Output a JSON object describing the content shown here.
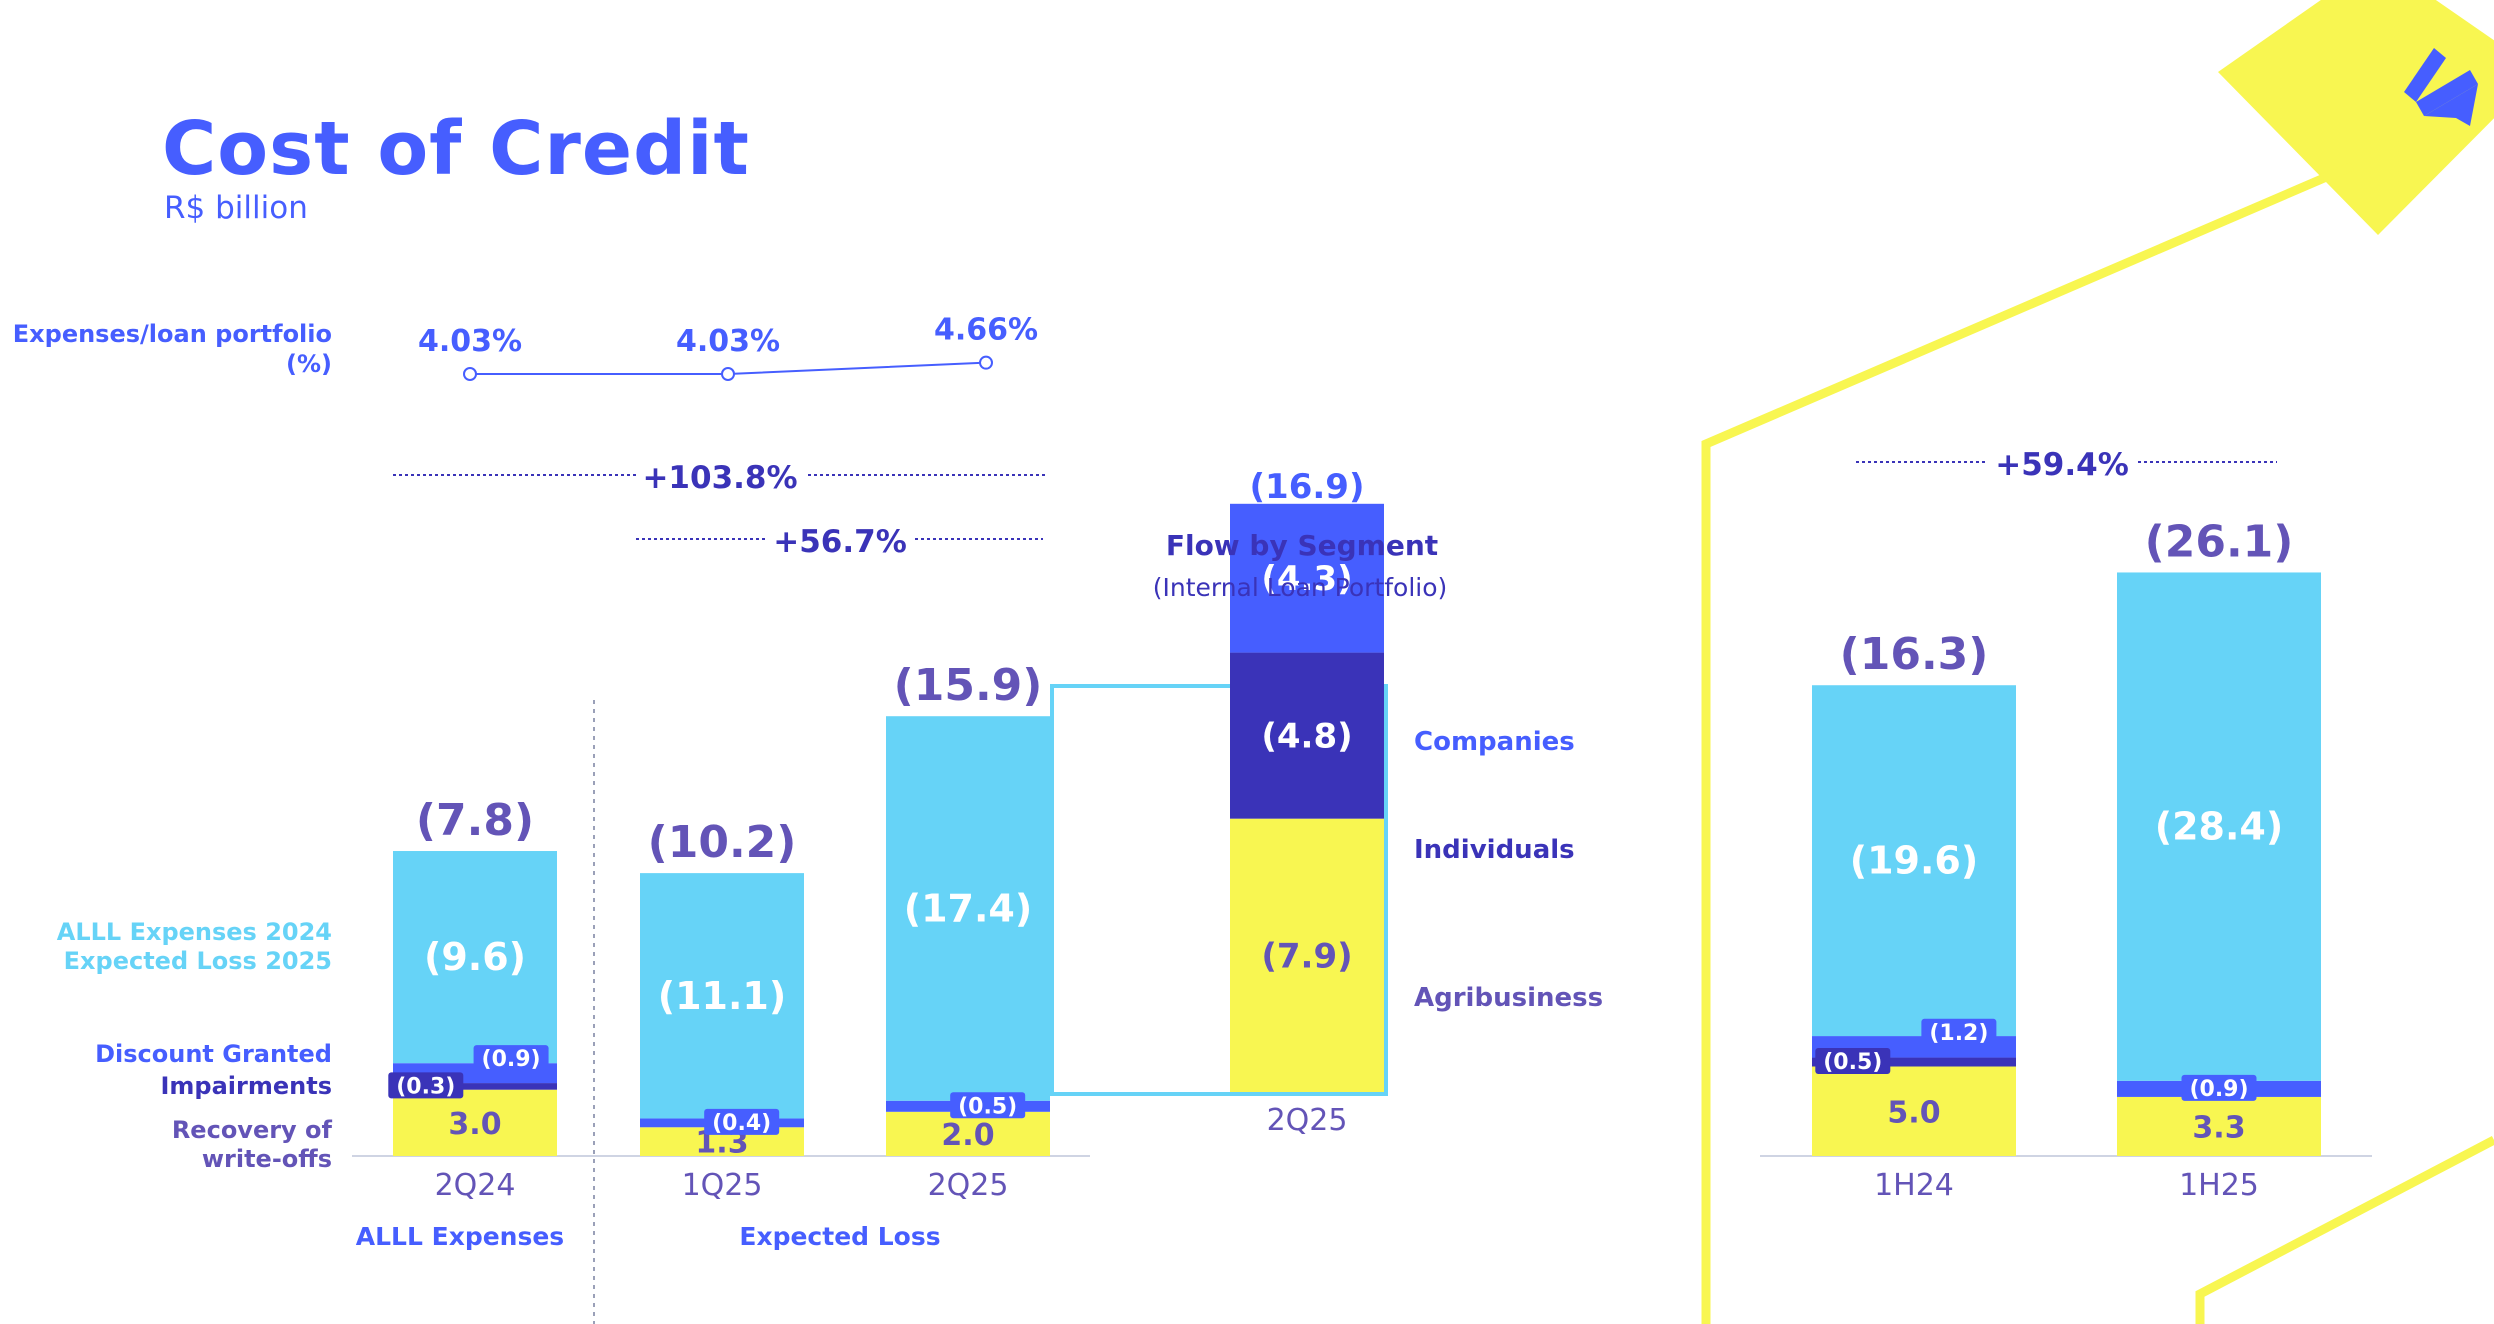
{
  "header": {
    "title": "Cost of Credit",
    "subtitle": "R$ billion"
  },
  "colors": {
    "cyan": "#66d3f7",
    "yellow": "#f8f651",
    "blue": "#465eff",
    "navy": "#3a33b8",
    "purple": "#6354b7",
    "logo": "#465eff"
  },
  "ratio": {
    "label_line1": "Expenses/loan portfolio",
    "label_line2": "(%)",
    "points": [
      "4.03%",
      "4.03%",
      "4.66%"
    ],
    "values": [
      4.03,
      4.03,
      4.66
    ]
  },
  "growth": [
    {
      "label": "+103.8%"
    },
    {
      "label": "+56.7%"
    },
    {
      "label": "+59.4%"
    }
  ],
  "legend_left": {
    "allL_line1": "ALLL Expenses 2024",
    "allL_line2": "Expected Loss 2025",
    "discount": "Discount Granted",
    "impairments": "Impairments",
    "recovery_line1": "Recovery of",
    "recovery_line2": "write-offs"
  },
  "groups": {
    "alll": "ALLL Expenses",
    "expected": "Expected Loss"
  },
  "segment": {
    "title": "Flow by Segment",
    "subtitle": "(Internal Loan Portfolio)",
    "period": "2Q25",
    "total": "(16.9)",
    "companies_value": "(4.3)",
    "individuals_value": "(4.8)",
    "agri_value": "(7.9)",
    "companies_label": "Companies",
    "individuals_label": "Individuals",
    "agri_label": "Agribusiness"
  },
  "chart_data": [
    {
      "type": "bar",
      "stacked": true,
      "categories": [
        "2Q24",
        "1Q25",
        "2Q25"
      ],
      "series": [
        {
          "name": "Recovery of write-offs",
          "values": [
            3.0,
            1.3,
            2.0
          ],
          "labels": [
            "3.0",
            "1.3",
            "2.0"
          ]
        },
        {
          "name": "Impairments",
          "values": [
            -0.3,
            0,
            0
          ],
          "labels": [
            "(0.3)",
            "",
            ""
          ]
        },
        {
          "name": "Discount Granted",
          "values": [
            -0.9,
            -0.4,
            -0.5
          ],
          "labels": [
            "(0.9)",
            "(0.4)",
            "(0.5)"
          ]
        },
        {
          "name": "ALLL Expenses 2024 / Expected Loss 2025",
          "values": [
            -9.6,
            -11.1,
            -17.4
          ],
          "labels": [
            "(9.6)",
            "(11.1)",
            "(17.4)"
          ]
        }
      ],
      "totals": [
        -7.8,
        -10.2,
        -15.9
      ],
      "total_labels": [
        "(7.8)",
        "(10.2)",
        "(15.9)"
      ]
    },
    {
      "type": "bar",
      "stacked": true,
      "categories": [
        "2Q25"
      ],
      "series": [
        {
          "name": "Agribusiness",
          "values": [
            -7.9
          ],
          "labels": [
            "(7.9)"
          ]
        },
        {
          "name": "Individuals",
          "values": [
            -4.8
          ],
          "labels": [
            "(4.8)"
          ]
        },
        {
          "name": "Companies",
          "values": [
            -4.3
          ],
          "labels": [
            "(4.3)"
          ]
        }
      ],
      "totals": [
        -16.9
      ],
      "total_labels": [
        "(16.9)"
      ]
    },
    {
      "type": "bar",
      "stacked": true,
      "categories": [
        "1H24",
        "1H25"
      ],
      "series": [
        {
          "name": "Recovery of write-offs",
          "values": [
            5.0,
            3.3
          ],
          "labels": [
            "5.0",
            "3.3"
          ]
        },
        {
          "name": "Impairments",
          "values": [
            -0.5,
            0
          ],
          "labels": [
            "(0.5)",
            ""
          ]
        },
        {
          "name": "Discount Granted",
          "values": [
            -1.2,
            -0.9
          ],
          "labels": [
            "(1.2)",
            "(0.9)"
          ]
        },
        {
          "name": "ALLL Expenses 2024 / Expected Loss 2025",
          "values": [
            -19.6,
            -28.4
          ],
          "labels": [
            "(19.6)",
            "(28.4)"
          ]
        }
      ],
      "totals": [
        -16.3,
        -26.1
      ],
      "total_labels": [
        "(16.3)",
        "(26.1)"
      ]
    }
  ]
}
